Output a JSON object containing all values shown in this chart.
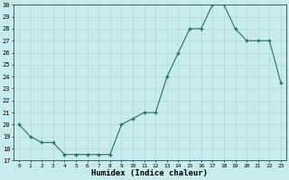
{
  "x": [
    0,
    1,
    2,
    3,
    4,
    5,
    6,
    7,
    8,
    9,
    10,
    11,
    12,
    13,
    14,
    15,
    16,
    17,
    18,
    19,
    20,
    21,
    22,
    23
  ],
  "y": [
    20,
    19,
    18.5,
    18.5,
    17.5,
    17.5,
    17.5,
    17.5,
    17.5,
    20,
    20.5,
    21,
    21,
    24,
    26,
    28,
    28,
    30,
    30,
    28,
    27,
    27,
    27,
    23.5
  ],
  "xlabel": "Humidex (Indice chaleur)",
  "ylim": [
    17,
    30
  ],
  "xlim": [
    -0.5,
    23.5
  ],
  "yticks": [
    17,
    18,
    19,
    20,
    21,
    22,
    23,
    24,
    25,
    26,
    27,
    28,
    29,
    30
  ],
  "xticks": [
    0,
    1,
    2,
    3,
    4,
    5,
    6,
    7,
    8,
    9,
    10,
    11,
    12,
    13,
    14,
    15,
    16,
    17,
    18,
    19,
    20,
    21,
    22,
    23
  ],
  "line_color": "#2a6e62",
  "bg_color": "#c8ecec",
  "grid_color": "#b0d8d8"
}
